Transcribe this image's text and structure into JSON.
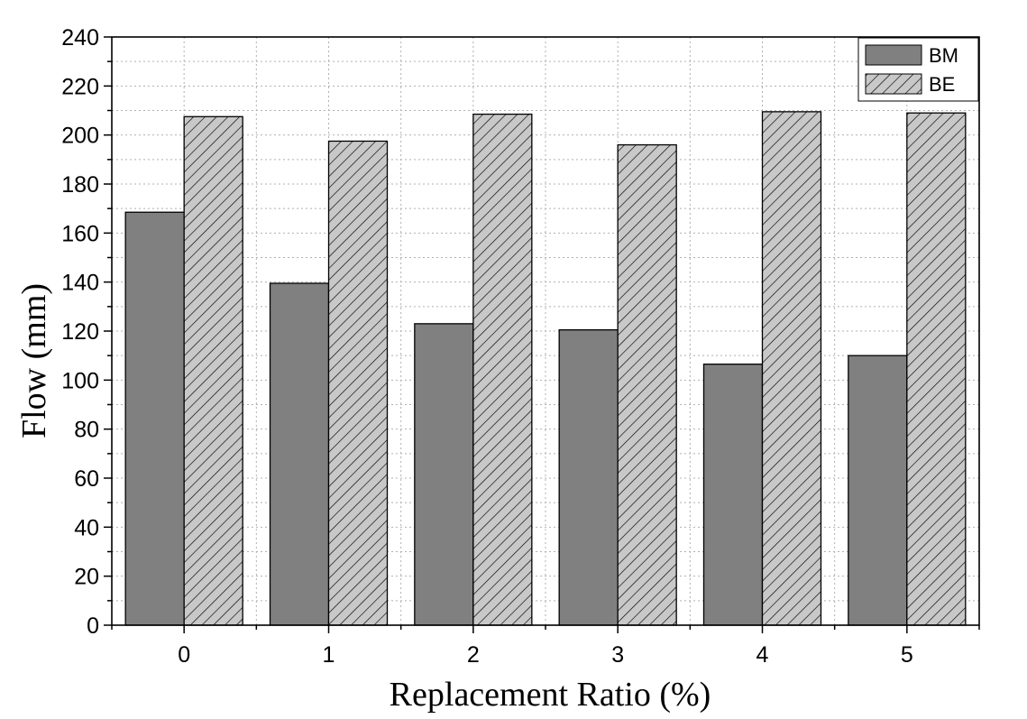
{
  "chart_data": {
    "type": "bar",
    "title": "",
    "xlabel": "Replacement Ratio (%)",
    "ylabel": "Flow (mm)",
    "categories": [
      "0",
      "1",
      "2",
      "3",
      "4",
      "5"
    ],
    "series": [
      {
        "name": "BM",
        "values": [
          168.5,
          139.5,
          123,
          120.5,
          106.5,
          110
        ],
        "color": "#808080",
        "pattern": "solid"
      },
      {
        "name": "BE",
        "values": [
          207.5,
          197.5,
          208.5,
          196,
          209.5,
          209
        ],
        "color": "#c8c8c8",
        "pattern": "diagonal-hatch"
      }
    ],
    "ylim": [
      0,
      240
    ],
    "yticks": [
      "0",
      "20",
      "40",
      "60",
      "80",
      "100",
      "120",
      "140",
      "160",
      "180",
      "200",
      "220",
      "240"
    ],
    "grid": true,
    "legend_position": "top-right"
  }
}
